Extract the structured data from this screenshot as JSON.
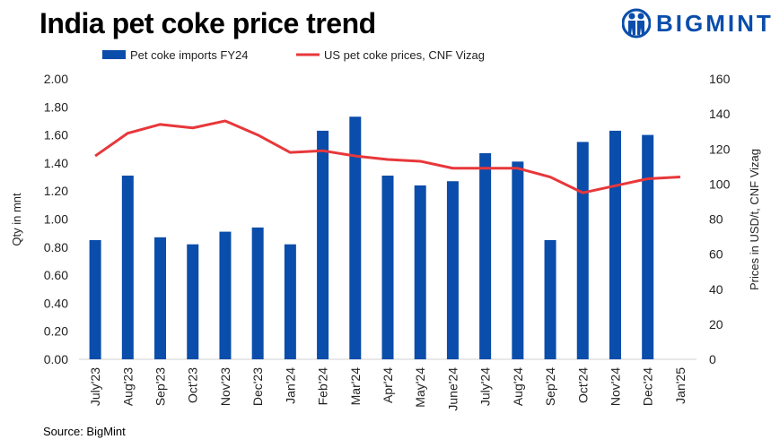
{
  "title": "India pet coke price trend",
  "logo": {
    "text": "BIGMINT",
    "color": "#0a4dab"
  },
  "source": "Source: BigMint",
  "chart_data": {
    "type": "bar+line",
    "title": "India pet coke price trend",
    "categories": [
      "July'23",
      "Aug'23",
      "Sep'23",
      "Oct'23",
      "Nov'23",
      "Dec'23",
      "Jan'24",
      "Feb'24",
      "Mar'24",
      "Apr'24",
      "May'24",
      "June'24",
      "July'24",
      "Aug'24",
      "Sep'24",
      "Oct'24",
      "Nov'24",
      "Dec'24",
      "Jan'25"
    ],
    "series": [
      {
        "name": "Pet coke imports FY24",
        "type": "bar",
        "axis": "left",
        "color": "#0a4dab",
        "values": [
          0.85,
          1.31,
          0.87,
          0.82,
          0.91,
          0.94,
          0.82,
          1.63,
          1.73,
          1.31,
          1.24,
          1.27,
          1.47,
          1.41,
          0.85,
          1.55,
          1.63,
          1.6,
          null
        ]
      },
      {
        "name": "US pet coke prices, CNF Vizag",
        "type": "line",
        "axis": "right",
        "color": "#e8373a",
        "values": [
          116,
          129,
          134,
          132,
          136,
          128,
          118,
          119,
          116,
          114,
          113,
          109,
          109,
          109,
          104,
          95,
          99,
          103,
          104
        ]
      }
    ],
    "ylabel": "Qty in mnt",
    "ylim": [
      0,
      2.0
    ],
    "yticks": [
      "0.00",
      "0.20",
      "0.40",
      "0.60",
      "0.80",
      "1.00",
      "1.20",
      "1.40",
      "1.60",
      "1.80",
      "2.00"
    ],
    "y2label": "Prices in USD/t, CNF Vizag",
    "y2lim": [
      0,
      160
    ],
    "y2ticks": [
      "0",
      "20",
      "40",
      "60",
      "80",
      "100",
      "120",
      "140",
      "160"
    ],
    "grid": false,
    "legend": "top"
  }
}
